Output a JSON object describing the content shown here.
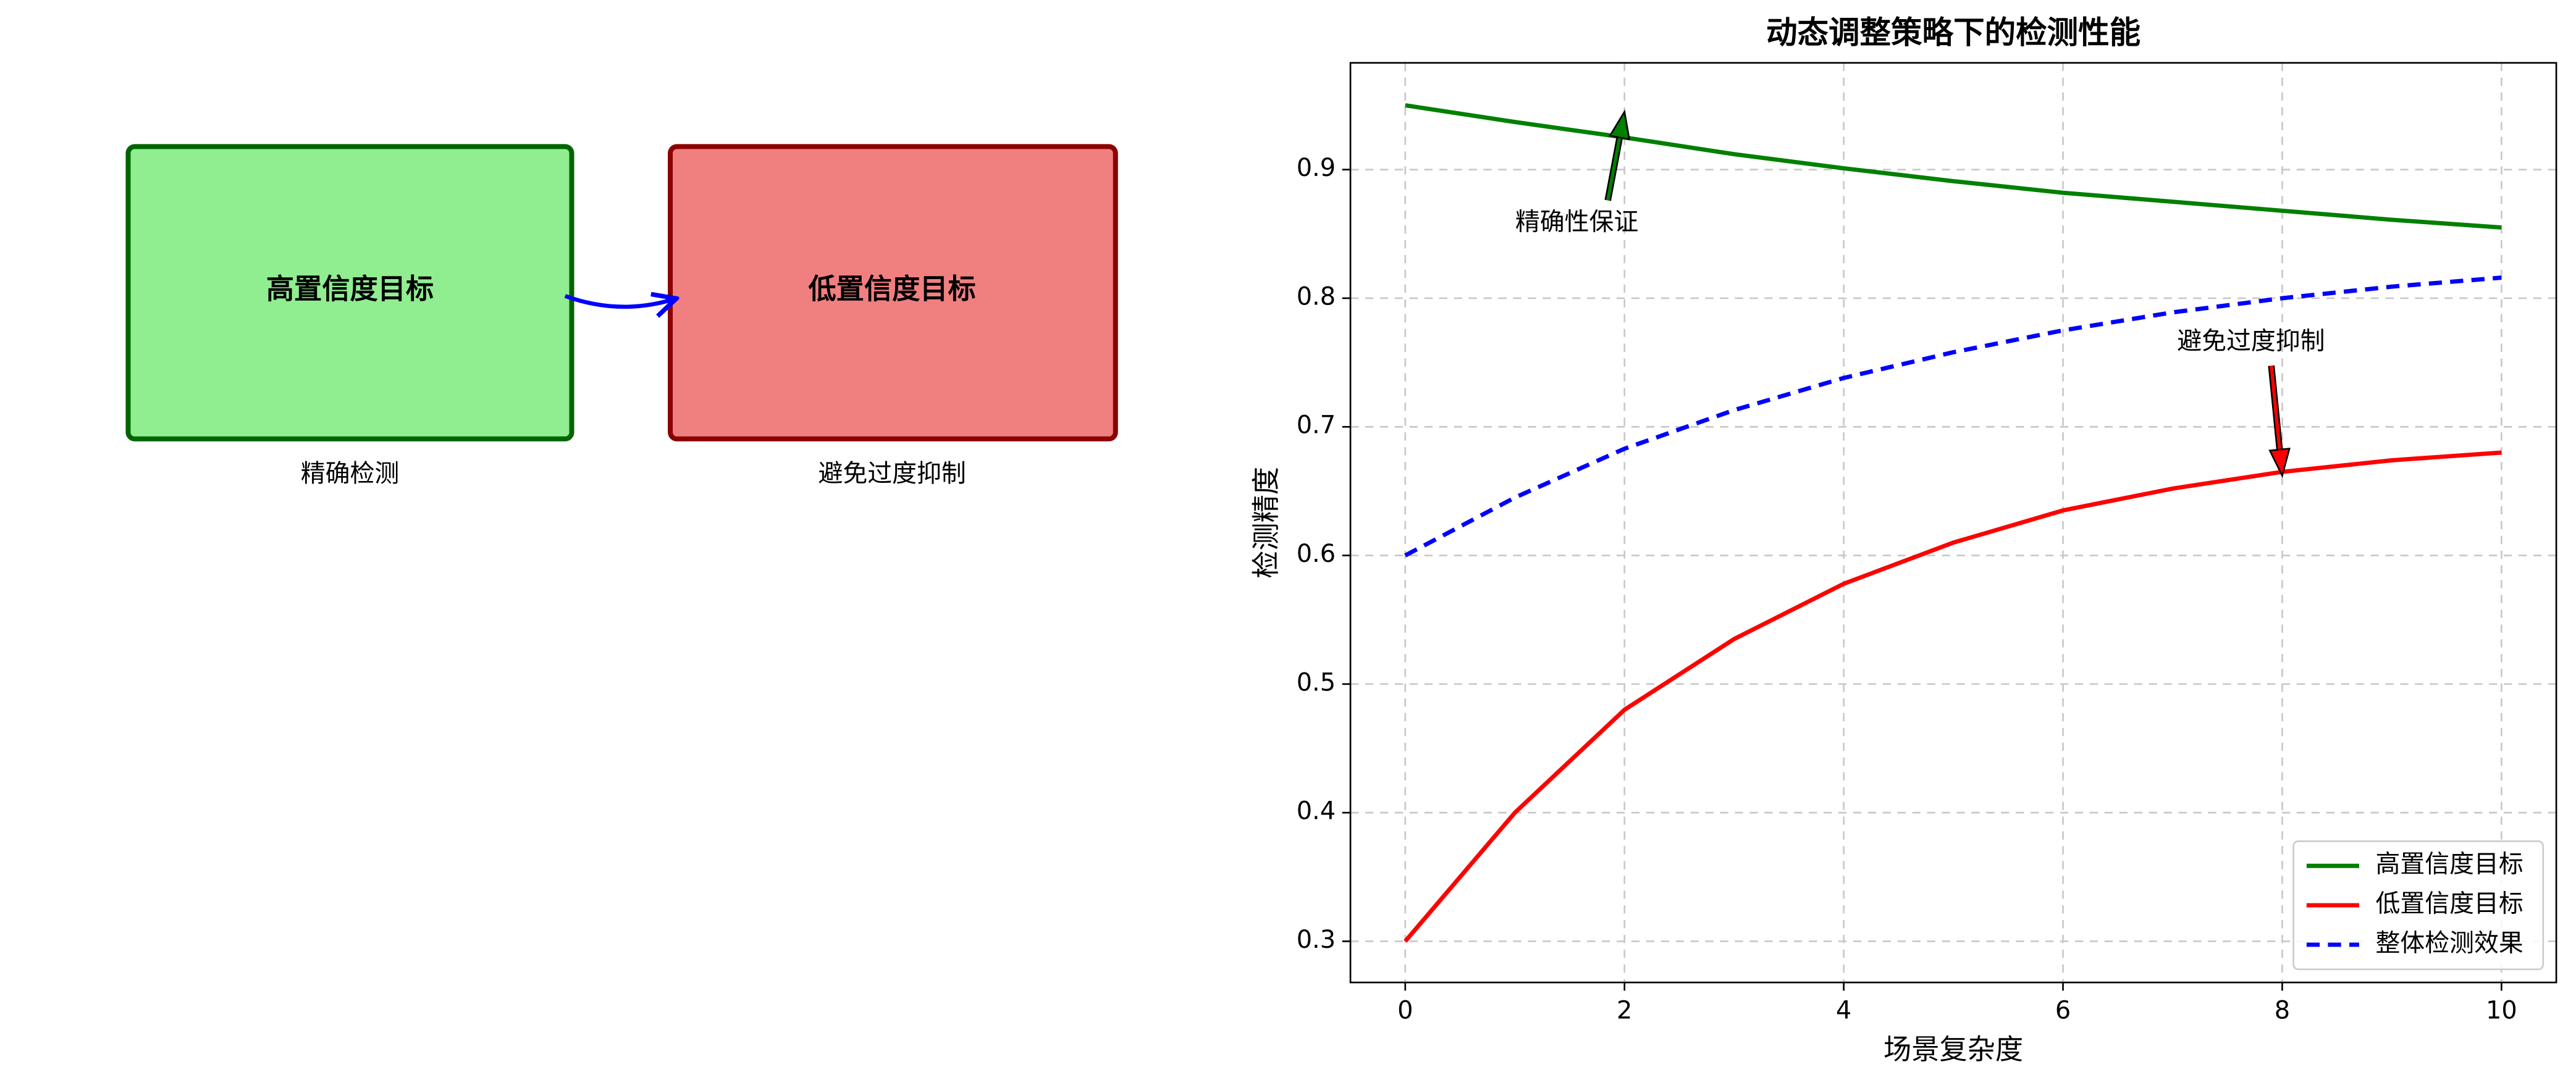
{
  "diagram": {
    "nodes": [
      {
        "label": "高置信度目标",
        "caption": "精确检测"
      },
      {
        "label": "低置信度目标",
        "caption": "避免过度抑制"
      }
    ]
  },
  "chart_data": {
    "type": "line",
    "title": "动态调整策略下的检测性能",
    "xlabel": "场景复杂度",
    "ylabel": "检测精度",
    "x": [
      0,
      1,
      2,
      3,
      4,
      5,
      6,
      7,
      8,
      9,
      10
    ],
    "series": [
      {
        "name": "高置信度目标",
        "color": "#008000",
        "dash": false,
        "values": [
          0.95,
          0.937,
          0.925,
          0.912,
          0.901,
          0.891,
          0.882,
          0.875,
          0.868,
          0.861,
          0.855
        ]
      },
      {
        "name": "低置信度目标",
        "color": "#ff0000",
        "dash": false,
        "values": [
          0.3,
          0.4,
          0.48,
          0.535,
          0.578,
          0.61,
          0.635,
          0.652,
          0.665,
          0.674,
          0.68
        ]
      },
      {
        "name": "整体检测效果",
        "color": "#0000ff",
        "dash": true,
        "values": [
          0.6,
          0.645,
          0.683,
          0.713,
          0.738,
          0.758,
          0.775,
          0.789,
          0.8,
          0.809,
          0.816
        ]
      }
    ],
    "xlim": [
      -0.5,
      10.5
    ],
    "ylim": [
      0.268,
      0.983
    ],
    "xticks": [
      0,
      2,
      4,
      6,
      8,
      10
    ],
    "yticks": [
      0.3,
      0.4,
      0.5,
      0.6,
      0.7,
      0.8,
      0.9
    ],
    "grid": true,
    "legend": "lower right",
    "annotations": [
      {
        "text": "精确性保证",
        "x": 2,
        "y": 0.945,
        "color": "#008000"
      },
      {
        "text": "避免过度抑制",
        "x": 8,
        "y": 0.662,
        "color": "#ff0000"
      }
    ]
  }
}
